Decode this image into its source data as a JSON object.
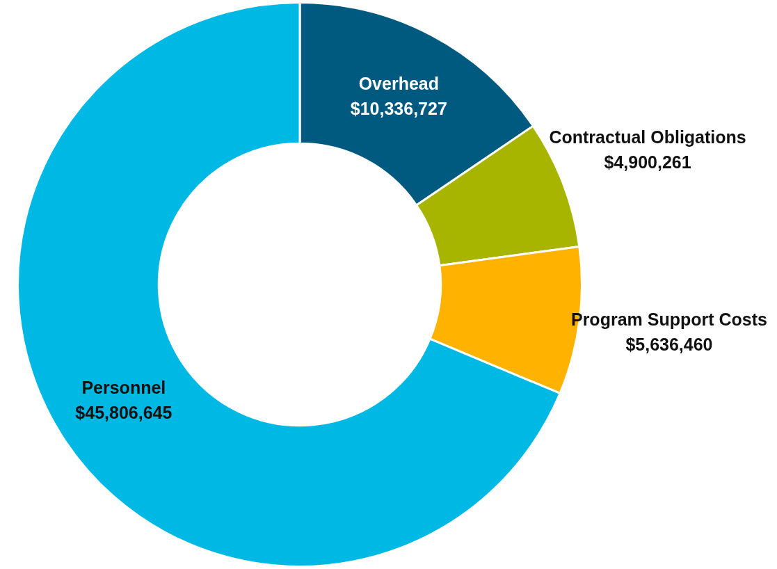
{
  "chart_data": {
    "type": "donut",
    "categories": [
      "Overhead",
      "Contractual Obligations",
      "Program Support Costs",
      "Personnel"
    ],
    "values": [
      10336727,
      4900261,
      5636460,
      45806645
    ],
    "colors": [
      "#005a80",
      "#a7b500",
      "#ffb300",
      "#00b8e4"
    ],
    "value_labels": [
      "$10,336,727",
      "$4,900,261",
      "$5,636,460",
      "$45,806,645"
    ],
    "legend": false
  }
}
